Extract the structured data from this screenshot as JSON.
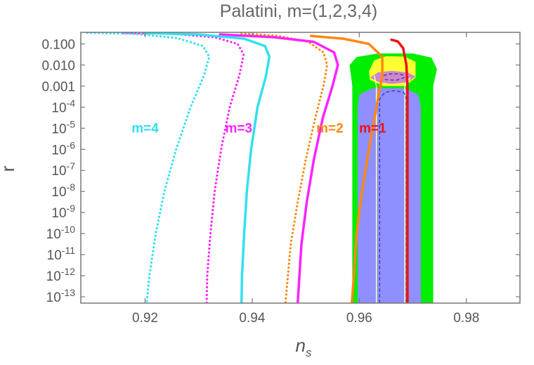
{
  "chart_data": {
    "type": "line",
    "title": "Palatini, m=(1,2,3,4)",
    "xlabel": "n",
    "xlabel_sub": "s",
    "ylabel": "r",
    "y_scale": "log",
    "xlim": [
      0.908,
      0.99
    ],
    "ylim_log10": [
      -13.3,
      -0.45
    ],
    "x_ticks": [
      {
        "value": 0.92,
        "label": "0.92"
      },
      {
        "value": 0.94,
        "label": "0.94"
      },
      {
        "value": 0.96,
        "label": "0.96"
      },
      {
        "value": 0.98,
        "label": "0.98"
      }
    ],
    "y_ticks": [
      {
        "exp": -1,
        "label": "0.100"
      },
      {
        "exp": -2,
        "label": "0.010"
      },
      {
        "exp": -3,
        "label": "0.001"
      },
      {
        "exp": -4,
        "base": "10",
        "sup": "-4"
      },
      {
        "exp": -5,
        "base": "10",
        "sup": "-5"
      },
      {
        "exp": -6,
        "base": "10",
        "sup": "-6"
      },
      {
        "exp": -7,
        "base": "10",
        "sup": "-7"
      },
      {
        "exp": -8,
        "base": "10",
        "sup": "-8"
      },
      {
        "exp": -9,
        "base": "10",
        "sup": "-9"
      },
      {
        "exp": -10,
        "base": "10",
        "sup": "-10"
      },
      {
        "exp": -11,
        "base": "10",
        "sup": "-11"
      },
      {
        "exp": -12,
        "base": "10",
        "sup": "-12"
      },
      {
        "exp": -13,
        "base": "10",
        "sup": "-13"
      }
    ],
    "regions": [
      {
        "color": "#00ee00",
        "points": [
          [
            0.9587,
            -13.3
          ],
          [
            0.9587,
            -3.0
          ],
          [
            0.9582,
            -2.0
          ],
          [
            0.9595,
            -1.62
          ],
          [
            0.9635,
            -1.45
          ],
          [
            0.97,
            -1.45
          ],
          [
            0.9735,
            -1.65
          ],
          [
            0.9745,
            -2.2
          ],
          [
            0.9738,
            -3.0
          ],
          [
            0.9738,
            -13.3
          ]
        ]
      },
      {
        "color": "#8f8fff",
        "points": [
          [
            0.9597,
            -13.3
          ],
          [
            0.9597,
            -4.0
          ],
          [
            0.96,
            -3.4
          ],
          [
            0.9625,
            -3.1
          ],
          [
            0.9685,
            -3.1
          ],
          [
            0.971,
            -3.4
          ],
          [
            0.9715,
            -4.0
          ],
          [
            0.9715,
            -13.3
          ]
        ]
      },
      {
        "color": "#ffff33",
        "points": [
          [
            0.9618,
            -2.3
          ],
          [
            0.9628,
            -1.78
          ],
          [
            0.965,
            -1.58
          ],
          [
            0.9685,
            -1.6
          ],
          [
            0.9705,
            -1.85
          ],
          [
            0.9705,
            -2.6
          ],
          [
            0.9685,
            -3.0
          ],
          [
            0.9645,
            -3.0
          ],
          [
            0.962,
            -2.7
          ]
        ]
      },
      {
        "color": "#cc88cc",
        "points": [
          [
            0.962,
            -2.6
          ],
          [
            0.9635,
            -2.35
          ],
          [
            0.966,
            -2.28
          ],
          [
            0.969,
            -2.35
          ],
          [
            0.9705,
            -2.55
          ],
          [
            0.969,
            -2.82
          ],
          [
            0.966,
            -2.9
          ],
          [
            0.9635,
            -2.8
          ]
        ]
      }
    ],
    "boundaries": [
      {
        "color": "#ffff99",
        "points": [
          [
            0.9632,
            -13.3
          ],
          [
            0.9632,
            -3.0
          ],
          [
            0.9628,
            -2.5
          ]
        ]
      },
      {
        "color": "#ffff99",
        "points": [
          [
            0.9685,
            -13.3
          ],
          [
            0.9685,
            -3.0
          ],
          [
            0.9695,
            -2.6
          ]
        ]
      }
    ],
    "dashed": [
      {
        "color": "#3344cc",
        "points": [
          [
            0.9638,
            -13.3
          ],
          [
            0.9638,
            -3.6
          ],
          [
            0.9648,
            -3.3
          ],
          [
            0.9665,
            -3.22
          ],
          [
            0.9683,
            -3.3
          ],
          [
            0.9688,
            -3.6
          ],
          [
            0.9688,
            -13.3
          ]
        ]
      },
      {
        "color": "#6633aa",
        "points": [
          [
            0.9645,
            -2.5
          ],
          [
            0.9662,
            -2.4
          ],
          [
            0.968,
            -2.45
          ],
          [
            0.9684,
            -2.6
          ],
          [
            0.967,
            -2.72
          ],
          [
            0.965,
            -2.7
          ],
          [
            0.9643,
            -2.6
          ]
        ]
      }
    ],
    "series": [
      {
        "name": "m=1",
        "color": "#ee1111",
        "style": "solid",
        "points": [
          [
            0.966,
            -0.8
          ],
          [
            0.9672,
            -0.88
          ],
          [
            0.9682,
            -1.2
          ],
          [
            0.9688,
            -2.0
          ],
          [
            0.969,
            -3.0
          ],
          [
            0.969,
            -5.0
          ],
          [
            0.969,
            -7.0
          ],
          [
            0.969,
            -9.0
          ],
          [
            0.969,
            -11.0
          ],
          [
            0.969,
            -13.3
          ]
        ]
      },
      {
        "name": "m=2",
        "color": "#ff8811",
        "style": "solid",
        "points": [
          [
            0.951,
            -0.62
          ],
          [
            0.957,
            -0.75
          ],
          [
            0.9618,
            -1.0
          ],
          [
            0.9643,
            -1.6
          ],
          [
            0.9643,
            -2.5
          ],
          [
            0.9632,
            -4.0
          ],
          [
            0.9618,
            -6.0
          ],
          [
            0.9605,
            -8.0
          ],
          [
            0.9595,
            -10.0
          ],
          [
            0.959,
            -12.0
          ],
          [
            0.9586,
            -13.3
          ]
        ]
      },
      {
        "name": "m=2",
        "color": "#ff8811",
        "style": "dotted",
        "points": [
          [
            0.938,
            -0.5
          ],
          [
            0.945,
            -0.62
          ],
          [
            0.9505,
            -0.9
          ],
          [
            0.9533,
            -1.4
          ],
          [
            0.954,
            -2.0
          ],
          [
            0.9533,
            -3.0
          ],
          [
            0.9518,
            -4.5
          ],
          [
            0.95,
            -6.5
          ],
          [
            0.9485,
            -8.5
          ],
          [
            0.9472,
            -10.5
          ],
          [
            0.9465,
            -12.5
          ],
          [
            0.9462,
            -13.3
          ]
        ]
      },
      {
        "name": "m=3",
        "color": "#ff22ff",
        "style": "solid",
        "points": [
          [
            0.934,
            -0.55
          ],
          [
            0.944,
            -0.68
          ],
          [
            0.9515,
            -0.9
          ],
          [
            0.9553,
            -1.4
          ],
          [
            0.956,
            -2.0
          ],
          [
            0.955,
            -3.0
          ],
          [
            0.9532,
            -4.5
          ],
          [
            0.9515,
            -6.5
          ],
          [
            0.9502,
            -8.5
          ],
          [
            0.9492,
            -10.5
          ],
          [
            0.9487,
            -12.5
          ],
          [
            0.9485,
            -13.3
          ]
        ]
      },
      {
        "name": "m=3",
        "color": "#ff22ff",
        "style": "dotted",
        "points": [
          [
            0.916,
            -0.48
          ],
          [
            0.925,
            -0.52
          ],
          [
            0.933,
            -0.68
          ],
          [
            0.9373,
            -1.0
          ],
          [
            0.9384,
            -1.5
          ],
          [
            0.9376,
            -2.5
          ],
          [
            0.9358,
            -4.0
          ],
          [
            0.9342,
            -6.0
          ],
          [
            0.933,
            -8.0
          ],
          [
            0.9322,
            -10.0
          ],
          [
            0.9316,
            -12.0
          ],
          [
            0.9315,
            -13.3
          ]
        ]
      },
      {
        "name": "m=4",
        "color": "#33e0ee",
        "style": "solid",
        "points": [
          [
            0.92,
            -0.48
          ],
          [
            0.93,
            -0.55
          ],
          [
            0.9385,
            -0.75
          ],
          [
            0.9424,
            -1.1
          ],
          [
            0.9432,
            -1.6
          ],
          [
            0.9426,
            -2.5
          ],
          [
            0.941,
            -4.0
          ],
          [
            0.9398,
            -6.0
          ],
          [
            0.939,
            -8.0
          ],
          [
            0.9385,
            -10.0
          ],
          [
            0.9381,
            -12.0
          ],
          [
            0.938,
            -13.3
          ]
        ]
      },
      {
        "name": "m=4",
        "color": "#33e0ee",
        "style": "dotted",
        "points": [
          [
            0.9092,
            -0.47
          ],
          [
            0.918,
            -0.52
          ],
          [
            0.926,
            -0.72
          ],
          [
            0.9308,
            -1.1
          ],
          [
            0.932,
            -1.6
          ],
          [
            0.931,
            -2.5
          ],
          [
            0.9285,
            -4.0
          ],
          [
            0.9258,
            -6.0
          ],
          [
            0.9236,
            -8.0
          ],
          [
            0.922,
            -10.0
          ],
          [
            0.9208,
            -12.0
          ],
          [
            0.9203,
            -13.3
          ]
        ]
      }
    ],
    "curve_labels": [
      {
        "text": "m=1",
        "color": "#ee1111",
        "x": 0.9625,
        "y": -5.2
      },
      {
        "text": "m=2",
        "color": "#ff8811",
        "x": 0.9545,
        "y": -5.2
      },
      {
        "text": "m=3",
        "color": "#ff22ff",
        "x": 0.9375,
        "y": -5.2
      },
      {
        "text": "m=4",
        "color": "#33e0ee",
        "x": 0.92,
        "y": -5.2
      }
    ]
  }
}
